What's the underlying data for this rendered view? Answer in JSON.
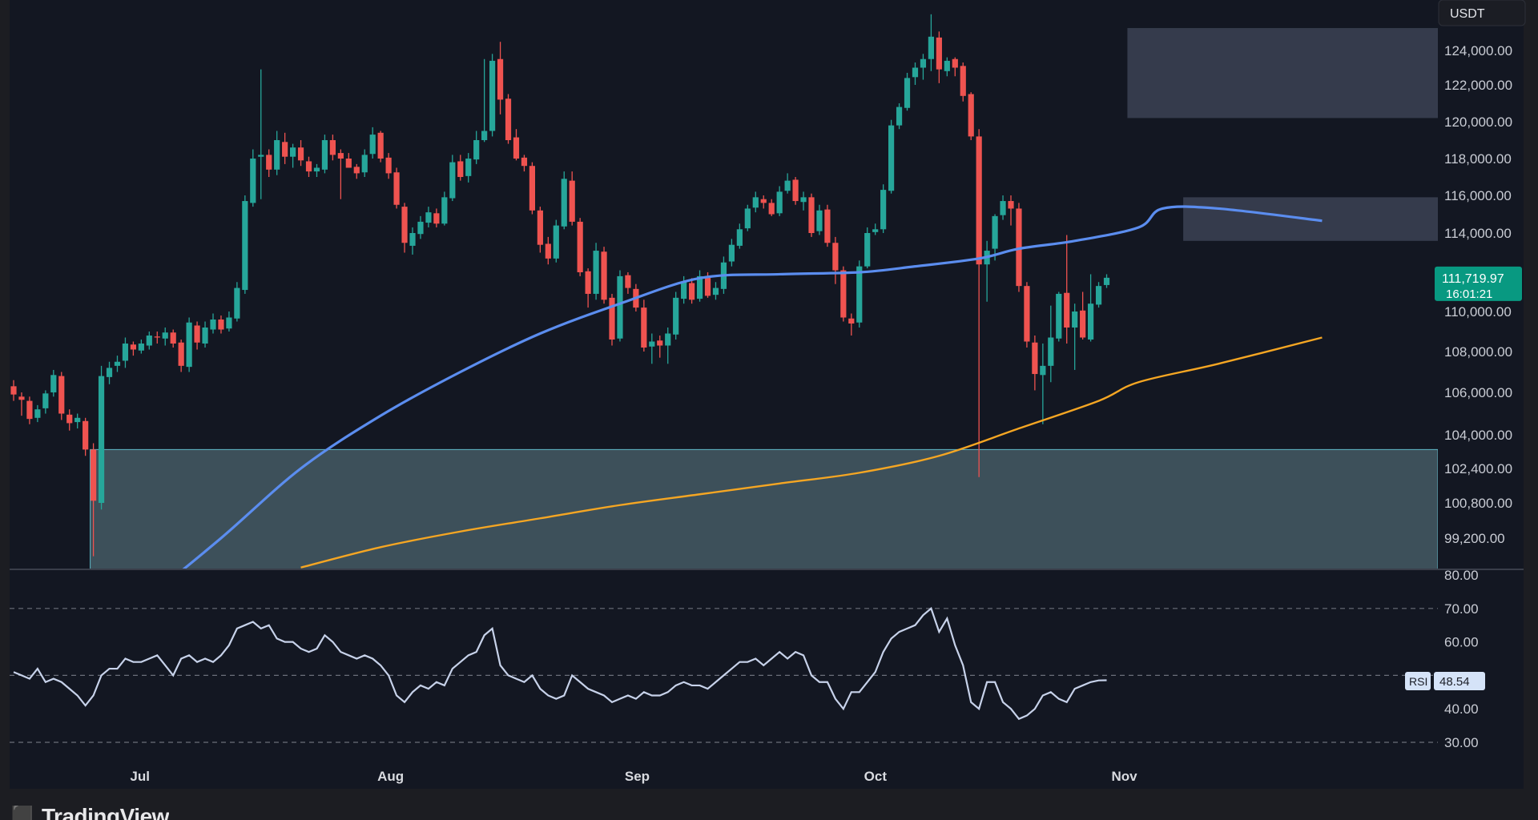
{
  "app": {
    "brand": "TradingView"
  },
  "header": {
    "currency_badge": "USDT"
  },
  "price_label": {
    "price": "111,719.97",
    "countdown": "16:01:21",
    "color": "#089981"
  },
  "rsi_label": {
    "name": "RSI",
    "value": "48.54"
  },
  "colors": {
    "background": "#131722",
    "up": "#26a69a",
    "down": "#ef5350",
    "ma_blue": "#5b8def",
    "ma_orange": "#f5a623",
    "rsi_line": "#c7d2ea",
    "zone_gray": "#4a5266",
    "zone_teal": "#4d6670"
  },
  "chart_data": [
    {
      "type": "candlestick",
      "title": "",
      "ylim": [
        97500,
        126000
      ],
      "x_range": [
        "2025-06-15",
        "2025-11-09"
      ],
      "yticks": [
        "124,000.00",
        "122,000.00",
        "120,000.00",
        "118,000.00",
        "116,000.00",
        "114,000.00",
        "110,000.00",
        "108,000.00",
        "106,000.00",
        "104,000.00",
        "102,400.00",
        "100,800.00",
        "99,200.00"
      ],
      "ytick_values": [
        124000,
        122000,
        120000,
        118000,
        116000,
        114000,
        110000,
        108000,
        106000,
        104000,
        102400,
        100800,
        99200
      ],
      "xticks": [
        "Jul",
        "Aug",
        "Sep",
        "Oct",
        "Nov"
      ],
      "xtick_dates": [
        "2025-07-01",
        "2025-08-01",
        "2025-09-01",
        "2025-10-01",
        "2025-11-01"
      ],
      "start_date": "2025-06-15",
      "candles_close": [
        105900,
        105650,
        104750,
        105200,
        105950,
        106850,
        105000,
        104550,
        104800,
        103300,
        100900,
        106800,
        107200,
        107500,
        108400,
        108100,
        108400,
        108800,
        108700,
        108950,
        108400,
        107300,
        109450,
        108450,
        109200,
        109600,
        109100,
        109700,
        111200,
        115700,
        118000,
        118200,
        117400,
        119000,
        118100,
        118600,
        117900,
        117300,
        117500,
        119000,
        118200,
        118000,
        117500,
        117200,
        118200,
        119300,
        118000,
        117200,
        115500,
        113500,
        114000,
        114600,
        115100,
        114500,
        115900,
        117800,
        117000,
        118000,
        119000,
        119500,
        123400,
        121200,
        119000,
        118000,
        117600,
        115200,
        113400,
        112700,
        114400,
        116900,
        114600,
        112000,
        110900,
        113100,
        110600,
        108600,
        111800,
        111200,
        110200,
        108200,
        108500,
        108300,
        108900,
        110700,
        111500,
        110600,
        111800,
        110800,
        111200,
        112500,
        113400,
        114200,
        115300,
        115900,
        115600,
        115000,
        116200,
        116800,
        115700,
        115900,
        114000,
        115200,
        113500,
        112100,
        109700,
        109400,
        112300,
        114000,
        114200,
        116300,
        119800,
        120800,
        122400,
        123000,
        123500,
        124800,
        122900,
        123400,
        123000,
        121400,
        119200,
        112400,
        113100,
        114900,
        115700,
        115300,
        111300,
        108500,
        106900,
        107300,
        108700,
        110900,
        109200,
        110000,
        108700,
        110400,
        111300,
        111720
      ],
      "candles_open": [
        106300,
        105800,
        105600,
        104800,
        105250,
        106000,
        106800,
        104950,
        104600,
        104650,
        103300,
        100800,
        106750,
        107300,
        107550,
        108350,
        108050,
        108300,
        108750,
        108650,
        108950,
        108450,
        107250,
        109300,
        108400,
        109100,
        109600,
        109150,
        109650,
        111100,
        115600,
        118100,
        118200,
        117400,
        118900,
        118100,
        118600,
        117850,
        117300,
        117400,
        119000,
        118300,
        118000,
        117550,
        117250,
        118250,
        119400,
        118050,
        117250,
        115400,
        113350,
        113950,
        114550,
        115050,
        114500,
        115850,
        117850,
        117050,
        117950,
        119000,
        119500,
        123500,
        121250,
        119150,
        118050,
        117600,
        115200,
        113450,
        112700,
        114350,
        116800,
        114600,
        112050,
        110900,
        113050,
        110700,
        108650,
        111850,
        111150,
        110200,
        108250,
        108550,
        108300,
        108850,
        110650,
        111450,
        110650,
        111750,
        110850,
        111150,
        112550,
        113350,
        114250,
        115350,
        115800,
        115600,
        115050,
        116250,
        116850,
        115650,
        115900,
        114100,
        115250,
        113500,
        112100,
        109650,
        109450,
        112300,
        114050,
        114200,
        116250,
        119800,
        120750,
        122450,
        123000,
        123500,
        124750,
        122800,
        123500,
        123100,
        121500,
        119200,
        112400,
        113200,
        114950,
        115700,
        115300,
        111300,
        108450,
        106850,
        107300,
        108650,
        110950,
        109200,
        110050,
        108600,
        110350,
        111350
      ],
      "candles_high": [
        106600,
        106000,
        105800,
        105400,
        106100,
        107100,
        107000,
        105200,
        105000,
        104800,
        103600,
        107300,
        107500,
        107800,
        108700,
        108500,
        108600,
        109000,
        109000,
        109200,
        109100,
        108600,
        109700,
        109500,
        109500,
        109900,
        109800,
        110000,
        111500,
        116000,
        118500,
        122900,
        118500,
        119500,
        119400,
        118800,
        119000,
        118100,
        117700,
        119300,
        119300,
        118500,
        118300,
        117700,
        118500,
        119700,
        119500,
        118300,
        117500,
        115600,
        114300,
        114900,
        115400,
        115300,
        116200,
        118200,
        118200,
        118300,
        119500,
        123500,
        123800,
        124500,
        121500,
        119600,
        118200,
        117800,
        115400,
        113800,
        114700,
        117300,
        117300,
        114800,
        112200,
        113500,
        113300,
        110900,
        112100,
        112000,
        111400,
        110600,
        108900,
        108800,
        109200,
        111000,
        111800,
        111700,
        112100,
        112000,
        111500,
        112800,
        113700,
        114500,
        115500,
        116200,
        116000,
        115800,
        116500,
        117200,
        117000,
        116200,
        116100,
        115500,
        115500,
        113800,
        112300,
        109900,
        112600,
        114300,
        114500,
        116600,
        120100,
        121000,
        122700,
        123300,
        123800,
        126100,
        125100,
        123600,
        123600,
        123300,
        121600,
        119600,
        113600,
        115000,
        116000,
        116000,
        115600,
        111500,
        108800,
        108400,
        110300,
        111000,
        113900,
        110400,
        111000,
        111900,
        111500,
        111900
      ],
      "candles_low": [
        105600,
        104900,
        104500,
        104600,
        105000,
        105800,
        104700,
        104200,
        104300,
        103000,
        98400,
        100500,
        106400,
        107000,
        107200,
        107800,
        107900,
        108100,
        108400,
        108300,
        108200,
        107000,
        107000,
        108100,
        108200,
        108900,
        108900,
        109000,
        109500,
        110900,
        115400,
        115800,
        117000,
        117100,
        117700,
        117500,
        117600,
        117000,
        117000,
        117200,
        117900,
        115800,
        117600,
        116900,
        117000,
        118000,
        117800,
        116900,
        115300,
        113000,
        112900,
        113700,
        114300,
        114300,
        114400,
        115700,
        116800,
        116700,
        117700,
        118900,
        119200,
        120400,
        118800,
        117900,
        117300,
        115000,
        113000,
        112400,
        112500,
        114200,
        114400,
        111800,
        110200,
        110600,
        110400,
        108300,
        108500,
        110900,
        110000,
        108000,
        107400,
        107700,
        107400,
        108600,
        110400,
        110400,
        110500,
        110700,
        110600,
        110900,
        112300,
        113200,
        114100,
        115100,
        115300,
        114900,
        114900,
        116100,
        115500,
        115200,
        113800,
        113900,
        113300,
        111400,
        109500,
        108800,
        109200,
        112200,
        113900,
        114000,
        116100,
        119600,
        120600,
        122000,
        122300,
        122800,
        122100,
        122500,
        122500,
        121100,
        119000,
        102000,
        110500,
        112600,
        114700,
        114400,
        111000,
        108200,
        106100,
        104500,
        106500,
        108500,
        108400,
        107100,
        108600,
        108500,
        110200,
        111200
      ],
      "ma_blue_start_index": 16,
      "ma_blue": [
        96300,
        96900,
        97550,
        98250,
        98950,
        99700,
        100400,
        101150,
        101900,
        102650,
        103400,
        104100,
        104650,
        105150,
        105600,
        106000,
        106400,
        106850,
        107250,
        107650,
        107950,
        108200,
        108550,
        108800,
        109100,
        109350,
        109650,
        109950,
        110200,
        110400,
        110600,
        110900,
        111200,
        111500,
        111700,
        111900,
        112050,
        112200,
        112300,
        112400,
        112500,
        112600,
        112650,
        112700,
        112700,
        112750,
        112800,
        112800,
        112800,
        112850,
        112900,
        112950,
        113000,
        113050,
        113100,
        113200,
        113300,
        113400,
        113500,
        113550,
        113600,
        113600,
        113650,
        113700,
        113750,
        113800,
        113900,
        114000,
        114100,
        114200,
        114350,
        114500,
        114650,
        114800,
        115050,
        115300,
        115350,
        115400,
        115400,
        115400,
        115350,
        115200,
        115150,
        115050,
        115000,
        114950,
        114900,
        114850,
        114800,
        114750,
        114700
      ],
      "ma_blue_points": [
        [
          16,
          96300
        ],
        [
          26,
          99200
        ],
        [
          36,
          102400
        ],
        [
          46,
          104900
        ],
        [
          56,
          107000
        ],
        [
          66,
          108900
        ],
        [
          76,
          110400
        ],
        [
          86,
          111700
        ],
        [
          96,
          111900
        ],
        [
          106,
          112000
        ],
        [
          113,
          112300
        ],
        [
          121,
          112700
        ],
        [
          126,
          113200
        ],
        [
          133,
          113600
        ],
        [
          141,
          114300
        ],
        [
          144,
          115300
        ],
        [
          151,
          115300
        ],
        [
          164,
          114650
        ]
      ],
      "ma_orange_points": [
        [
          36,
          97900
        ],
        [
          46,
          98800
        ],
        [
          56,
          99500
        ],
        [
          66,
          100100
        ],
        [
          76,
          100700
        ],
        [
          86,
          101200
        ],
        [
          96,
          101700
        ],
        [
          106,
          102200
        ],
        [
          116,
          103000
        ],
        [
          126,
          104300
        ],
        [
          136,
          105600
        ],
        [
          141,
          106500
        ],
        [
          151,
          107400
        ],
        [
          164,
          108700
        ]
      ],
      "zones": [
        {
          "name": "upper-resistance",
          "x_from": 140,
          "x_to": 198,
          "y_from": 120200,
          "y_to": 125300
        },
        {
          "name": "mid-resistance",
          "x_from": 147,
          "x_to": 198,
          "y_from": 113600,
          "y_to": 115900
        },
        {
          "name": "support-demand",
          "x_from": 10,
          "x_to": 198,
          "y_from": 97700,
          "y_to": 103300
        }
      ],
      "current_price": 111719.97
    },
    {
      "type": "line",
      "title": "",
      "series": [
        {
          "name": "RSI",
          "values": [
            51,
            50,
            49,
            52,
            48,
            49,
            48,
            46,
            44,
            41,
            44,
            50,
            52,
            52,
            55,
            54,
            54,
            55,
            56,
            53,
            50,
            55,
            56,
            54,
            55,
            54,
            56,
            59,
            64,
            65,
            66,
            64,
            65,
            61,
            60,
            60,
            58,
            57,
            58,
            62,
            60,
            57,
            56,
            55,
            56,
            55,
            53,
            50,
            44,
            42,
            45,
            47,
            46,
            48,
            47,
            52,
            54,
            56,
            57,
            62,
            64,
            53,
            50,
            49,
            48,
            50,
            46,
            44,
            43,
            44,
            50,
            48,
            46,
            45,
            44,
            42,
            43,
            44,
            43,
            45,
            44,
            44,
            45,
            47,
            48,
            47,
            47,
            46,
            48,
            50,
            52,
            54,
            54,
            55,
            53,
            55,
            57,
            55,
            57,
            56,
            50,
            48,
            48,
            43,
            40,
            45,
            45,
            48,
            51,
            57,
            61,
            63,
            64,
            65,
            68,
            70,
            63,
            67,
            59,
            53,
            42,
            40,
            48,
            48,
            42,
            40,
            37,
            38,
            40,
            44,
            45,
            43,
            42,
            46,
            47,
            48,
            48.5,
            48.54
          ]
        }
      ],
      "ylim": [
        25,
        82
      ],
      "yticks": [
        "80.00",
        "70.00",
        "60.00",
        "40.00",
        "30.00"
      ],
      "ytick_values": [
        80,
        70,
        60,
        40,
        30
      ],
      "dashed_levels": [
        70,
        50,
        30
      ]
    }
  ]
}
